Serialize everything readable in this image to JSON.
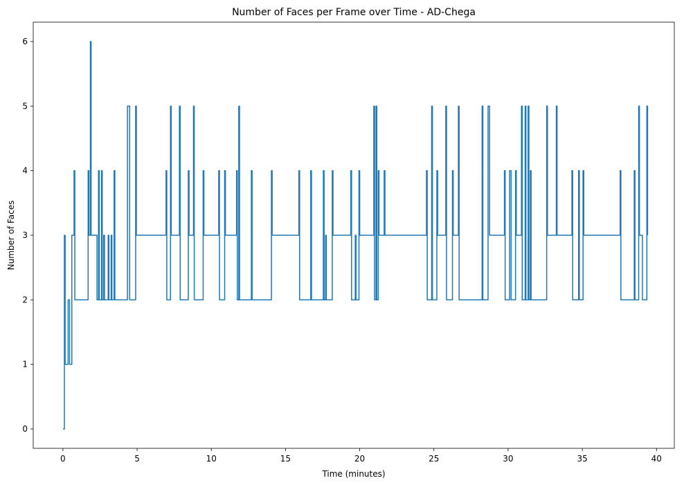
{
  "chart_data": {
    "type": "line",
    "title": "Number of Faces per Frame over Time - AD-Chega",
    "x_label": "Time (minutes)",
    "y_label": "Number of Faces",
    "xlim": [
      -2,
      41.2
    ],
    "ylim": [
      -0.3,
      6.3
    ],
    "xticks": [
      0,
      5,
      10,
      15,
      20,
      25,
      30,
      35,
      40
    ],
    "yticks": [
      0,
      1,
      2,
      3,
      4,
      5,
      6
    ],
    "grid": false,
    "color": "#1f77b4",
    "x": [
      0,
      0.1,
      0.1,
      0.15,
      0.15,
      0.35,
      0.35,
      0.45,
      0.45,
      0.6,
      0.6,
      0.75,
      0.75,
      0.8,
      0.8,
      1.7,
      1.7,
      1.75,
      1.75,
      1.85,
      1.85,
      1.9,
      1.9,
      2.3,
      2.3,
      2.4,
      2.4,
      2.45,
      2.45,
      2.6,
      2.6,
      2.65,
      2.65,
      2.75,
      2.75,
      2.8,
      2.8,
      3.05,
      3.05,
      3.1,
      3.1,
      3.25,
      3.25,
      3.3,
      3.3,
      3.45,
      3.45,
      3.5,
      3.5,
      4.35,
      4.35,
      4.5,
      4.5,
      4.9,
      4.9,
      4.95,
      4.95,
      6.95,
      6.95,
      7,
      7,
      7.25,
      7.25,
      7.3,
      7.3,
      7.85,
      7.85,
      7.9,
      7.9,
      8.45,
      8.45,
      8.5,
      8.5,
      8.8,
      8.8,
      8.85,
      8.85,
      9.45,
      9.45,
      9.5,
      9.5,
      10.5,
      10.5,
      10.55,
      10.55,
      10.9,
      10.9,
      10.95,
      10.95,
      11.7,
      11.7,
      11.75,
      11.75,
      11.85,
      11.85,
      11.9,
      11.9,
      12.7,
      12.7,
      12.75,
      12.75,
      14.05,
      14.05,
      14.1,
      14.1,
      15.9,
      15.9,
      15.95,
      15.95,
      16.7,
      16.7,
      16.75,
      16.75,
      17.55,
      17.55,
      17.6,
      17.6,
      17.7,
      17.7,
      17.75,
      17.75,
      18.15,
      18.15,
      18.2,
      18.2,
      19.4,
      19.4,
      19.45,
      19.45,
      19.7,
      19.7,
      19.75,
      19.75,
      19.95,
      19.95,
      20,
      20,
      20.95,
      20.95,
      21,
      21,
      21.1,
      21.1,
      21.15,
      21.15,
      21.25,
      21.25,
      21.3,
      21.3,
      21.65,
      21.65,
      21.7,
      21.7,
      24.5,
      24.5,
      24.55,
      24.55,
      24.85,
      24.85,
      24.9,
      24.9,
      25.2,
      25.2,
      25.25,
      25.25,
      25.8,
      25.8,
      25.85,
      25.85,
      26.25,
      26.25,
      26.3,
      26.3,
      26.65,
      26.65,
      26.7,
      26.7,
      28.25,
      28.25,
      28.3,
      28.3,
      28.65,
      28.65,
      28.75,
      28.75,
      29.75,
      29.75,
      29.8,
      29.8,
      30.1,
      30.1,
      30.2,
      30.2,
      30.5,
      30.5,
      30.55,
      30.55,
      30.9,
      30.9,
      30.95,
      30.95,
      31.15,
      31.15,
      31.2,
      31.2,
      31.35,
      31.35,
      31.4,
      31.4,
      31.5,
      31.5,
      31.55,
      31.55,
      32.6,
      32.6,
      32.65,
      32.65,
      33.25,
      33.25,
      33.3,
      33.3,
      34.3,
      34.3,
      34.35,
      34.35,
      34.75,
      34.75,
      34.8,
      34.8,
      35.05,
      35.05,
      35.1,
      35.1,
      37.55,
      37.55,
      37.6,
      37.6,
      38.5,
      38.5,
      38.55,
      38.55,
      38.8,
      38.8,
      38.85,
      38.85,
      39.05,
      39.05,
      39.1,
      39.1,
      39.35,
      39.35,
      39.4,
      39.4
    ],
    "values": [
      0,
      0,
      3,
      3,
      1,
      1,
      2,
      2,
      1,
      1,
      3,
      3,
      4,
      4,
      2,
      2,
      4,
      4,
      3,
      3,
      6,
      6,
      3,
      3,
      2,
      2,
      4,
      4,
      2,
      2,
      4,
      4,
      2,
      2,
      3,
      3,
      2,
      2,
      3,
      3,
      2,
      2,
      3,
      3,
      2,
      2,
      4,
      4,
      2,
      2,
      5,
      5,
      2,
      2,
      5,
      5,
      3,
      3,
      4,
      4,
      2,
      2,
      5,
      5,
      3,
      3,
      5,
      5,
      2,
      2,
      4,
      4,
      3,
      3,
      5,
      5,
      2,
      2,
      4,
      4,
      3,
      3,
      4,
      4,
      2,
      2,
      4,
      4,
      3,
      3,
      4,
      4,
      2,
      2,
      5,
      5,
      2,
      2,
      4,
      4,
      2,
      2,
      4,
      4,
      3,
      3,
      4,
      4,
      2,
      2,
      4,
      4,
      2,
      2,
      4,
      4,
      2,
      2,
      3,
      3,
      2,
      2,
      4,
      4,
      3,
      3,
      4,
      4,
      2,
      2,
      3,
      3,
      2,
      2,
      4,
      4,
      3,
      3,
      5,
      5,
      2,
      2,
      5,
      5,
      2,
      2,
      4,
      4,
      3,
      3,
      4,
      4,
      3,
      3,
      4,
      4,
      2,
      2,
      5,
      5,
      2,
      2,
      4,
      4,
      3,
      3,
      5,
      5,
      2,
      2,
      4,
      4,
      3,
      3,
      5,
      5,
      2,
      2,
      5,
      5,
      2,
      2,
      5,
      5,
      3,
      3,
      4,
      4,
      2,
      2,
      4,
      4,
      2,
      2,
      4,
      4,
      3,
      3,
      5,
      5,
      2,
      2,
      5,
      5,
      2,
      2,
      5,
      5,
      2,
      2,
      4,
      4,
      2,
      2,
      5,
      5,
      3,
      3,
      5,
      5,
      3,
      3,
      4,
      4,
      2,
      2,
      4,
      4,
      2,
      2,
      4,
      4,
      3,
      3,
      4,
      4,
      2,
      2,
      4,
      4,
      2,
      2,
      5,
      5,
      3,
      3,
      2,
      2,
      2,
      2,
      5,
      5,
      3
    ]
  }
}
